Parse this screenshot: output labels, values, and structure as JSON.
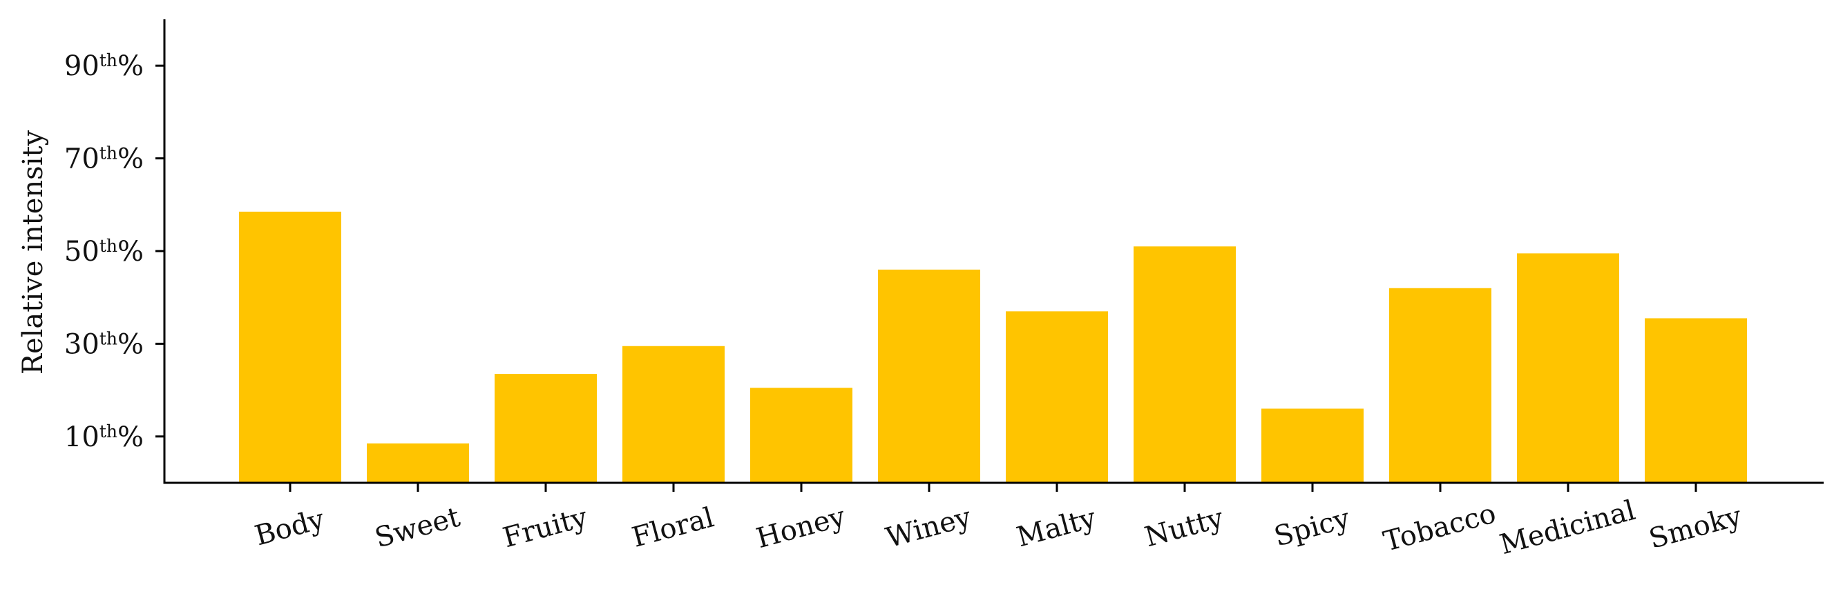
{
  "chart_data": {
    "type": "bar",
    "ylabel": "Relative intensity",
    "categories": [
      "Body",
      "Sweet",
      "Fruity",
      "Floral",
      "Honey",
      "Winey",
      "Malty",
      "Nutty",
      "Spicy",
      "Tobacco",
      "Medicinal",
      "Smoky"
    ],
    "values": [
      58.5,
      8.5,
      23.5,
      29.5,
      20.5,
      46,
      37,
      51,
      16,
      42,
      49.5,
      35.5
    ],
    "ylim": [
      0,
      100
    ],
    "y_ticks": [
      {
        "value": 10,
        "num": "10",
        "sup": "th",
        "pct": "%"
      },
      {
        "value": 30,
        "num": "30",
        "sup": "th",
        "pct": "%"
      },
      {
        "value": 50,
        "num": "50",
        "sup": "th",
        "pct": "%"
      },
      {
        "value": 70,
        "num": "70",
        "sup": "th",
        "pct": "%"
      },
      {
        "value": 90,
        "num": "90",
        "sup": "th",
        "pct": "%"
      }
    ],
    "bar_color": "#FFC400",
    "grid": false,
    "legend": "none"
  }
}
